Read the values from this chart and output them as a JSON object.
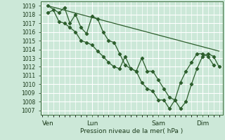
{
  "background_color": "#cce8d8",
  "plot_bg_color": "#cce8d8",
  "grid_color": "#ffffff",
  "line_color": "#2d5e2d",
  "marker_color": "#2d5e2d",
  "ylabel_text": "Pression niveau de la mer( hPa )",
  "ylim": [
    1006.5,
    1019.5
  ],
  "yticks": [
    1007,
    1008,
    1009,
    1010,
    1011,
    1012,
    1013,
    1014,
    1015,
    1016,
    1017,
    1018,
    1019
  ],
  "xtick_labels": [
    "Ven",
    "Lun",
    "Sam",
    "Dim"
  ],
  "xtick_positions": [
    0,
    48,
    120,
    168
  ],
  "vline_positions": [
    0,
    48,
    120,
    168
  ],
  "xlim": [
    -8,
    190
  ],
  "series1": [
    [
      0,
      1019.0
    ],
    [
      12,
      1018.2
    ],
    [
      18,
      1018.8
    ],
    [
      24,
      1017.0
    ],
    [
      30,
      1018.0
    ],
    [
      36,
      1016.5
    ],
    [
      42,
      1015.8
    ],
    [
      48,
      1017.8
    ],
    [
      54,
      1017.5
    ],
    [
      60,
      1016.0
    ],
    [
      66,
      1015.0
    ],
    [
      72,
      1014.8
    ],
    [
      78,
      1013.5
    ],
    [
      84,
      1012.2
    ],
    [
      90,
      1011.8
    ],
    [
      96,
      1011.5
    ],
    [
      102,
      1013.0
    ],
    [
      108,
      1011.5
    ],
    [
      114,
      1011.5
    ],
    [
      120,
      1010.5
    ],
    [
      126,
      1009.5
    ],
    [
      132,
      1008.5
    ],
    [
      138,
      1008.2
    ],
    [
      144,
      1007.2
    ],
    [
      150,
      1008.0
    ],
    [
      156,
      1010.0
    ],
    [
      162,
      1011.8
    ],
    [
      168,
      1013.2
    ],
    [
      174,
      1013.5
    ],
    [
      180,
      1013.2
    ],
    [
      186,
      1012.0
    ]
  ],
  "series2": [
    [
      0,
      1018.2
    ],
    [
      6,
      1018.5
    ],
    [
      12,
      1017.2
    ],
    [
      18,
      1017.0
    ],
    [
      24,
      1016.5
    ],
    [
      30,
      1016.0
    ],
    [
      36,
      1015.0
    ],
    [
      42,
      1014.8
    ],
    [
      48,
      1014.5
    ],
    [
      54,
      1013.8
    ],
    [
      60,
      1013.2
    ],
    [
      66,
      1012.5
    ],
    [
      72,
      1012.0
    ],
    [
      78,
      1011.8
    ],
    [
      84,
      1013.2
    ],
    [
      90,
      1011.8
    ],
    [
      96,
      1011.5
    ],
    [
      102,
      1010.2
    ],
    [
      108,
      1009.5
    ],
    [
      114,
      1009.2
    ],
    [
      120,
      1008.2
    ],
    [
      126,
      1008.2
    ],
    [
      132,
      1007.2
    ],
    [
      138,
      1008.2
    ],
    [
      144,
      1010.2
    ],
    [
      150,
      1011.5
    ],
    [
      156,
      1012.5
    ],
    [
      162,
      1013.5
    ],
    [
      168,
      1013.5
    ],
    [
      174,
      1013.2
    ],
    [
      180,
      1012.2
    ]
  ],
  "series3_straight": [
    [
      0,
      1019.0
    ],
    [
      186,
      1013.8
    ]
  ]
}
